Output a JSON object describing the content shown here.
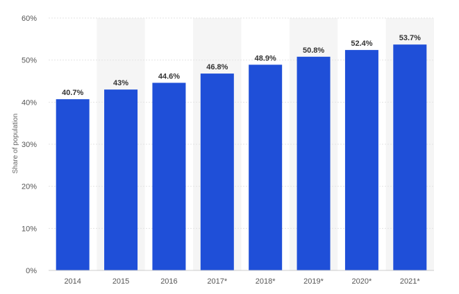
{
  "chart_data": {
    "type": "bar",
    "ylabel": "Share of population",
    "xlabel": "",
    "categories": [
      "2014",
      "2015",
      "2016",
      "2017*",
      "2018*",
      "2019*",
      "2020*",
      "2021*"
    ],
    "values": [
      40.7,
      43,
      44.6,
      46.8,
      48.9,
      50.8,
      52.4,
      53.7
    ],
    "data_labels": [
      "40.7%",
      "43%",
      "44.6%",
      "46.8%",
      "48.9%",
      "50.8%",
      "52.4%",
      "53.7%"
    ],
    "ylim": [
      0,
      60
    ],
    "yticks": [
      0,
      10,
      20,
      30,
      40,
      50,
      60
    ],
    "ytick_labels": [
      "0%",
      "10%",
      "20%",
      "30%",
      "40%",
      "50%",
      "60%"
    ],
    "grid": true,
    "alternating_column_shading": true,
    "colors": {
      "bar": "#1f4fd8",
      "shade": "#f5f5f5",
      "grid": "#e3e3e3"
    }
  }
}
